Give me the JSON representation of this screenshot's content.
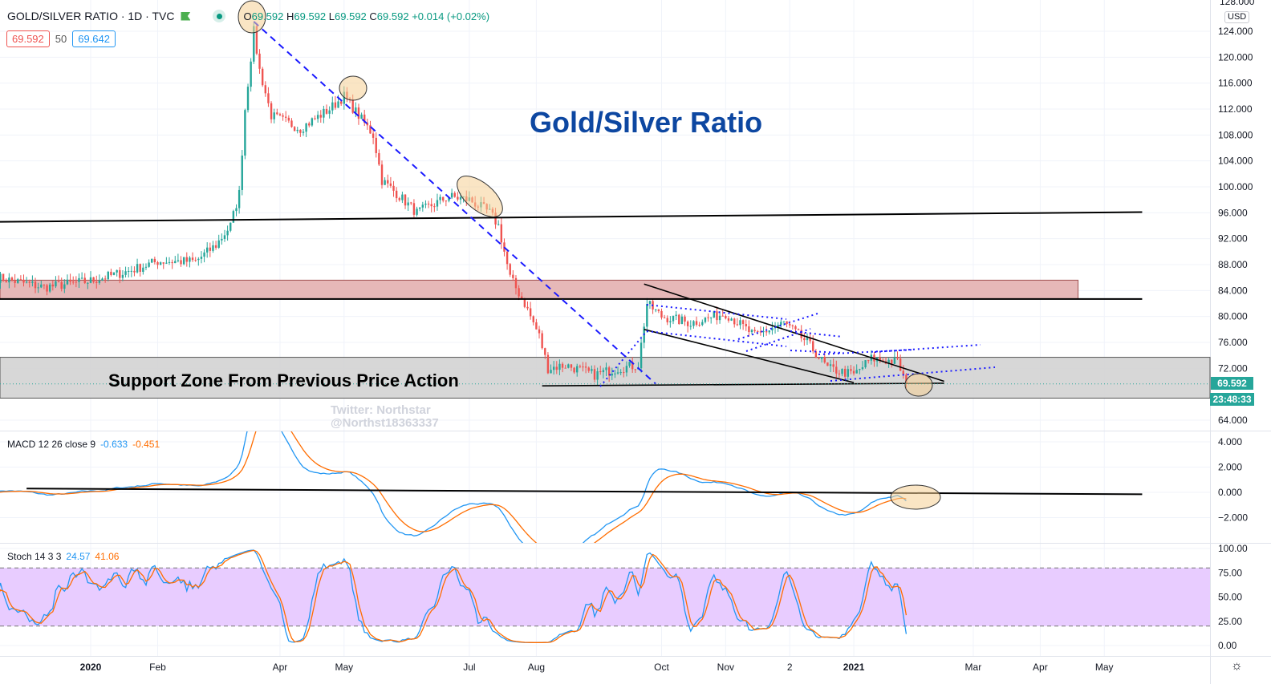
{
  "header": {
    "symbol": "GOLD/SILVER RATIO · 1D · TVC",
    "open": "69.592",
    "high": "69.592",
    "low": "69.592",
    "close": "69.592",
    "change": "+0.014 (+0.02%)",
    "o_label": "O",
    "h_label": "H",
    "l_label": "L",
    "c_label": "C",
    "bid": "69.592",
    "spread": "50",
    "ask": "69.642"
  },
  "price_axis": {
    "currency": "USD",
    "top_cut": "128.000",
    "last_price": "69.592",
    "countdown": "23:48:33"
  },
  "macd_legend": {
    "label": "MACD 12 26 close 9",
    "macd": "-0.633",
    "signal": "-0.451"
  },
  "stoch_legend": {
    "label": "Stoch 14 3 3",
    "k": "24.57",
    "d": "41.06"
  },
  "annotations": {
    "title": "Gold/Silver Ratio",
    "support": "Support Zone From Previous Price Action",
    "watermark1": "Twitter: Northstar",
    "watermark2": "@Northst18363337"
  },
  "colors": {
    "up": "#26a69a",
    "down": "#ef5350",
    "macd": "#2196f3",
    "signal": "#ff6d00",
    "title": "#0d47a1",
    "resistance_zone": "#e6b8b8",
    "support_zone": "#d3d3d3",
    "stoch_band": "#e8ccff",
    "trend_dashed": "#1a1aff"
  },
  "chart_data": {
    "type": "candlestick",
    "interval": "1D",
    "price_ticks": [
      64,
      68,
      72,
      76,
      80,
      84,
      88,
      92,
      96,
      100,
      104,
      108,
      112,
      116,
      120,
      124
    ],
    "macd_ticks": [
      -2,
      0,
      2,
      4
    ],
    "stoch_ticks": [
      0,
      25,
      50,
      75,
      100
    ],
    "time_ticks": [
      {
        "label": "2020",
        "date": "2020-01-01"
      },
      {
        "label": "Feb",
        "date": "2020-02-03"
      },
      {
        "label": "Apr",
        "date": "2020-04-01"
      },
      {
        "label": "May",
        "date": "2020-05-01"
      },
      {
        "label": "Jul",
        "date": "2020-07-01"
      },
      {
        "label": "Aug",
        "date": "2020-08-03"
      },
      {
        "label": "Oct",
        "date": "2020-10-01"
      },
      {
        "label": "Nov",
        "date": "2020-11-02"
      },
      {
        "label": "2",
        "date": "2020-12-02"
      },
      {
        "label": "2021",
        "date": "2021-01-01"
      },
      {
        "label": "Mar",
        "date": "2021-03-01"
      },
      {
        "label": "Apr",
        "date": "2021-04-01"
      },
      {
        "label": "May",
        "date": "2021-05-03"
      }
    ],
    "close_path": [
      [
        "2019-11-18",
        86
      ],
      [
        "2019-12-10",
        84.5
      ],
      [
        "2020-01-01",
        85.5
      ],
      [
        "2020-01-20",
        87
      ],
      [
        "2020-02-03",
        88.5
      ],
      [
        "2020-02-20",
        88.5
      ],
      [
        "2020-03-02",
        91
      ],
      [
        "2020-03-09",
        94
      ],
      [
        "2020-03-12",
        99
      ],
      [
        "2020-03-16",
        112
      ],
      [
        "2020-03-19",
        124
      ],
      [
        "2020-03-23",
        118
      ],
      [
        "2020-03-27",
        111
      ],
      [
        "2020-04-10",
        109
      ],
      [
        "2020-04-24",
        112
      ],
      [
        "2020-05-01",
        114
      ],
      [
        "2020-05-08",
        111
      ],
      [
        "2020-05-15",
        108
      ],
      [
        "2020-05-20",
        101
      ],
      [
        "2020-05-27",
        99
      ],
      [
        "2020-06-05",
        96
      ],
      [
        "2020-06-20",
        98.5
      ],
      [
        "2020-07-01",
        98
      ],
      [
        "2020-07-10",
        96
      ],
      [
        "2020-07-15",
        94
      ],
      [
        "2020-07-21",
        86
      ],
      [
        "2020-07-28",
        82
      ],
      [
        "2020-08-04",
        77
      ],
      [
        "2020-08-07",
        72
      ],
      [
        "2020-08-15",
        72.5
      ],
      [
        "2020-08-30",
        71
      ],
      [
        "2020-09-10",
        72
      ],
      [
        "2020-09-21",
        72.5
      ],
      [
        "2020-09-24",
        82
      ],
      [
        "2020-10-01",
        80
      ],
      [
        "2020-10-15",
        79
      ],
      [
        "2020-11-01",
        80.5
      ],
      [
        "2020-11-15",
        77
      ],
      [
        "2020-11-30",
        79
      ],
      [
        "2020-12-10",
        76
      ],
      [
        "2020-12-20",
        72
      ],
      [
        "2021-01-01",
        71
      ],
      [
        "2021-01-10",
        73.5
      ],
      [
        "2021-01-22",
        73
      ],
      [
        "2021-01-27",
        69.6
      ]
    ],
    "drawings": {
      "resistance_zone": {
        "from": "2019-11-18",
        "to": "2021-04-20",
        "low": 82.7,
        "high": 85.6
      },
      "support_zone": {
        "low": 67.4,
        "high": 73.7
      },
      "h_line_96": [
        [
          "2019-11-18",
          94.6
        ],
        [
          "2021-05-20",
          96.1
        ]
      ],
      "h_line_83": [
        [
          "2019-11-18",
          82.7
        ],
        [
          "2021-05-20",
          82.7
        ]
      ],
      "dashed_trend": [
        [
          "2020-03-19",
          125.5
        ],
        [
          "2020-09-29",
          69.6
        ]
      ],
      "triangle_upper": [
        [
          "2020-09-23",
          85
        ],
        [
          "2021-02-15",
          70
        ]
      ],
      "triangle_lower": [
        [
          "2020-09-23",
          78
        ],
        [
          "2021-01-01",
          69.8
        ]
      ],
      "triangle_base": [
        [
          "2020-08-05",
          69.3
        ],
        [
          "2021-02-15",
          69.7
        ]
      ],
      "macd_zero_line": [
        [
          "2019-12-02",
          0.3
        ],
        [
          "2021-05-20",
          -0.15
        ]
      ]
    }
  }
}
